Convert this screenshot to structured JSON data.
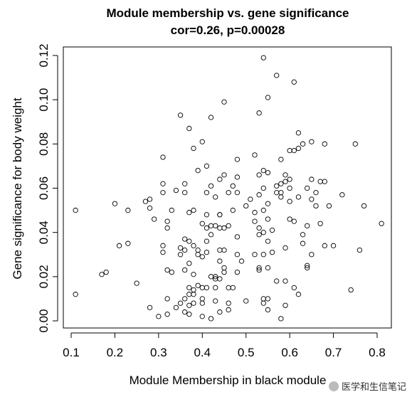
{
  "chart_data": {
    "type": "scatter",
    "title": "Module membership vs. gene significance",
    "subtitle": "cor=0.26, p=0.00028",
    "xlabel": "Module Membership in black module",
    "ylabel": "Gene significance for body weight",
    "xlim": [
      0.1,
      0.8
    ],
    "ylim": [
      0.0,
      0.12
    ],
    "xticks": [
      "0.1",
      "0.2",
      "0.3",
      "0.4",
      "0.5",
      "0.6",
      "0.7",
      "0.8"
    ],
    "yticks": [
      "0.00",
      "0.02",
      "0.04",
      "0.06",
      "0.08",
      "0.10",
      "0.12"
    ],
    "marker": "open-circle",
    "grid": false,
    "points": [
      [
        0.11,
        0.05
      ],
      [
        0.11,
        0.012
      ],
      [
        0.17,
        0.021
      ],
      [
        0.18,
        0.022
      ],
      [
        0.2,
        0.053
      ],
      [
        0.21,
        0.034
      ],
      [
        0.23,
        0.05
      ],
      [
        0.23,
        0.035
      ],
      [
        0.25,
        0.017
      ],
      [
        0.27,
        0.054
      ],
      [
        0.28,
        0.055
      ],
      [
        0.28,
        0.051
      ],
      [
        0.28,
        0.006
      ],
      [
        0.29,
        0.046
      ],
      [
        0.3,
        0.002
      ],
      [
        0.31,
        0.074
      ],
      [
        0.31,
        0.062
      ],
      [
        0.31,
        0.058
      ],
      [
        0.31,
        0.034
      ],
      [
        0.31,
        0.031
      ],
      [
        0.32,
        0.045
      ],
      [
        0.32,
        0.042
      ],
      [
        0.32,
        0.023
      ],
      [
        0.32,
        0.01
      ],
      [
        0.32,
        0.003
      ],
      [
        0.33,
        0.05
      ],
      [
        0.33,
        0.022
      ],
      [
        0.34,
        0.059
      ],
      [
        0.34,
        0.006
      ],
      [
        0.35,
        0.093
      ],
      [
        0.35,
        0.033
      ],
      [
        0.35,
        0.03
      ],
      [
        0.35,
        0.008
      ],
      [
        0.36,
        0.062
      ],
      [
        0.36,
        0.058
      ],
      [
        0.36,
        0.037
      ],
      [
        0.36,
        0.032
      ],
      [
        0.36,
        0.023
      ],
      [
        0.36,
        0.01
      ],
      [
        0.36,
        0.004
      ],
      [
        0.37,
        0.087
      ],
      [
        0.37,
        0.049
      ],
      [
        0.37,
        0.036
      ],
      [
        0.37,
        0.026
      ],
      [
        0.37,
        0.015
      ],
      [
        0.37,
        0.012
      ],
      [
        0.37,
        0.007
      ],
      [
        0.37,
        0.003
      ],
      [
        0.38,
        0.078
      ],
      [
        0.38,
        0.05
      ],
      [
        0.38,
        0.034
      ],
      [
        0.38,
        0.021
      ],
      [
        0.38,
        0.014
      ],
      [
        0.38,
        0.012
      ],
      [
        0.38,
        0.008
      ],
      [
        0.39,
        0.068
      ],
      [
        0.39,
        0.032
      ],
      [
        0.39,
        0.03
      ],
      [
        0.39,
        0.016
      ],
      [
        0.4,
        0.081
      ],
      [
        0.4,
        0.044
      ],
      [
        0.4,
        0.029
      ],
      [
        0.4,
        0.015
      ],
      [
        0.4,
        0.01
      ],
      [
        0.4,
        0.008
      ],
      [
        0.4,
        0.002
      ],
      [
        0.41,
        0.07
      ],
      [
        0.41,
        0.058
      ],
      [
        0.41,
        0.048
      ],
      [
        0.41,
        0.042
      ],
      [
        0.41,
        0.036
      ],
      [
        0.41,
        0.031
      ],
      [
        0.41,
        0.015
      ],
      [
        0.42,
        0.092
      ],
      [
        0.42,
        0.061
      ],
      [
        0.42,
        0.043
      ],
      [
        0.42,
        0.039
      ],
      [
        0.42,
        0.02
      ],
      [
        0.42,
        0.001
      ],
      [
        0.43,
        0.056
      ],
      [
        0.43,
        0.043
      ],
      [
        0.43,
        0.02
      ],
      [
        0.43,
        0.019
      ],
      [
        0.43,
        0.015
      ],
      [
        0.43,
        0.009
      ],
      [
        0.44,
        0.064
      ],
      [
        0.44,
        0.048
      ],
      [
        0.44,
        0.048
      ],
      [
        0.44,
        0.042
      ],
      [
        0.44,
        0.032
      ],
      [
        0.44,
        0.027
      ],
      [
        0.44,
        0.019
      ],
      [
        0.44,
        0.004
      ],
      [
        0.45,
        0.099
      ],
      [
        0.45,
        0.066
      ],
      [
        0.45,
        0.042
      ],
      [
        0.45,
        0.032
      ],
      [
        0.45,
        0.024
      ],
      [
        0.45,
        0.022
      ],
      [
        0.46,
        0.058
      ],
      [
        0.46,
        0.043
      ],
      [
        0.46,
        0.015
      ],
      [
        0.46,
        0.008
      ],
      [
        0.46,
        0.005
      ],
      [
        0.47,
        0.061
      ],
      [
        0.47,
        0.05
      ],
      [
        0.47,
        0.015
      ],
      [
        0.48,
        0.073
      ],
      [
        0.48,
        0.065
      ],
      [
        0.48,
        0.058
      ],
      [
        0.48,
        0.038
      ],
      [
        0.48,
        0.03
      ],
      [
        0.48,
        0.022
      ],
      [
        0.49,
        0.027
      ],
      [
        0.5,
        0.052
      ],
      [
        0.5,
        0.009
      ],
      [
        0.51,
        0.055
      ],
      [
        0.52,
        0.075
      ],
      [
        0.52,
        0.049
      ],
      [
        0.52,
        0.045
      ],
      [
        0.52,
        0.03
      ],
      [
        0.53,
        0.094
      ],
      [
        0.53,
        0.066
      ],
      [
        0.53,
        0.057
      ],
      [
        0.53,
        0.042
      ],
      [
        0.53,
        0.039
      ],
      [
        0.53,
        0.024
      ],
      [
        0.53,
        0.023
      ],
      [
        0.54,
        0.119
      ],
      [
        0.54,
        0.068
      ],
      [
        0.54,
        0.06
      ],
      [
        0.54,
        0.05
      ],
      [
        0.54,
        0.04
      ],
      [
        0.54,
        0.03
      ],
      [
        0.54,
        0.01
      ],
      [
        0.54,
        0.008
      ],
      [
        0.55,
        0.101
      ],
      [
        0.55,
        0.067
      ],
      [
        0.55,
        0.053
      ],
      [
        0.55,
        0.046
      ],
      [
        0.55,
        0.036
      ],
      [
        0.55,
        0.024
      ],
      [
        0.55,
        0.01
      ],
      [
        0.55,
        0.005
      ],
      [
        0.56,
        0.041
      ],
      [
        0.56,
        0.031
      ],
      [
        0.57,
        0.111
      ],
      [
        0.57,
        0.061
      ],
      [
        0.57,
        0.058
      ],
      [
        0.57,
        0.018
      ],
      [
        0.58,
        0.073
      ],
      [
        0.58,
        0.062
      ],
      [
        0.58,
        0.058
      ],
      [
        0.58,
        0.056
      ],
      [
        0.58,
        0.001
      ],
      [
        0.59,
        0.066
      ],
      [
        0.59,
        0.063
      ],
      [
        0.59,
        0.033
      ],
      [
        0.59,
        0.018
      ],
      [
        0.59,
        0.007
      ],
      [
        0.6,
        0.077
      ],
      [
        0.6,
        0.064
      ],
      [
        0.6,
        0.06
      ],
      [
        0.6,
        0.054
      ],
      [
        0.6,
        0.046
      ],
      [
        0.61,
        0.108
      ],
      [
        0.61,
        0.077
      ],
      [
        0.61,
        0.045
      ],
      [
        0.61,
        0.015
      ],
      [
        0.62,
        0.085
      ],
      [
        0.62,
        0.078
      ],
      [
        0.62,
        0.056
      ],
      [
        0.62,
        0.012
      ],
      [
        0.63,
        0.08
      ],
      [
        0.63,
        0.039
      ],
      [
        0.63,
        0.035
      ],
      [
        0.64,
        0.06
      ],
      [
        0.64,
        0.043
      ],
      [
        0.64,
        0.025
      ],
      [
        0.64,
        0.024
      ],
      [
        0.65,
        0.081
      ],
      [
        0.65,
        0.064
      ],
      [
        0.65,
        0.055
      ],
      [
        0.65,
        0.03
      ],
      [
        0.66,
        0.058
      ],
      [
        0.66,
        0.052
      ],
      [
        0.67,
        0.063
      ],
      [
        0.67,
        0.044
      ],
      [
        0.68,
        0.08
      ],
      [
        0.68,
        0.063
      ],
      [
        0.68,
        0.034
      ],
      [
        0.69,
        0.052
      ],
      [
        0.7,
        0.034
      ],
      [
        0.72,
        0.057
      ],
      [
        0.74,
        0.014
      ],
      [
        0.75,
        0.08
      ],
      [
        0.76,
        0.032
      ],
      [
        0.77,
        0.052
      ],
      [
        0.81,
        0.044
      ]
    ]
  },
  "watermark": {
    "text": "医学和生信笔记"
  }
}
